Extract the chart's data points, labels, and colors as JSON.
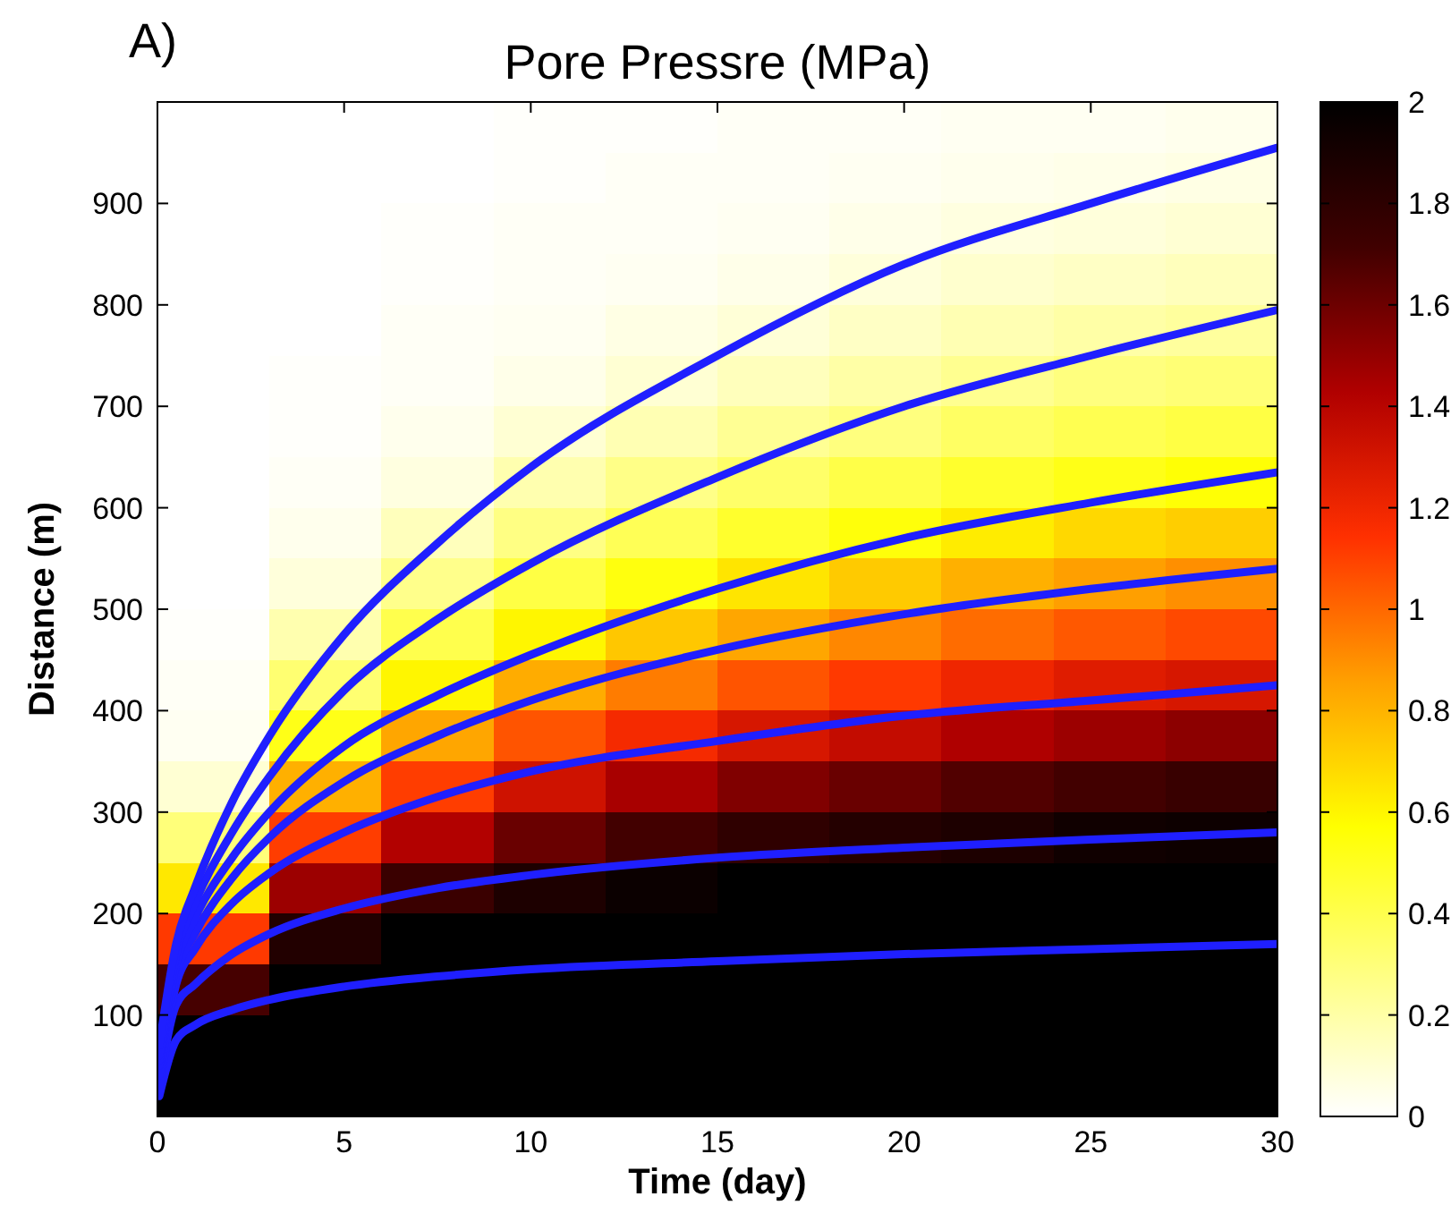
{
  "chart_data": {
    "type": "heatmap",
    "title": "Pore Pressre (MPa)",
    "xlabel": "Time (day)",
    "ylabel": "Distance  (m)",
    "annotations": [
      "A)"
    ],
    "x": [
      1.5,
      4.5,
      7.5,
      10.5,
      13.5,
      16.5,
      19.5,
      22.5,
      25.5,
      28.5
    ],
    "y": [
      975,
      925,
      875,
      825,
      775,
      725,
      675,
      625,
      575,
      525,
      475,
      425,
      375,
      325,
      275,
      225,
      175,
      125,
      75,
      25
    ],
    "xlim": [
      0,
      30
    ],
    "xticks": [
      0,
      5,
      10,
      15,
      20,
      25,
      30
    ],
    "ylim": [
      0,
      1000
    ],
    "yticks": [
      100,
      200,
      300,
      400,
      500,
      600,
      700,
      800,
      900
    ],
    "clim": [
      0,
      2
    ],
    "cticks": [
      0,
      0.2,
      0.4,
      0.6,
      0.8,
      1,
      1.2,
      1.4,
      1.6,
      1.8,
      2
    ],
    "cells": [
      [
        0,
        0,
        0,
        0.01,
        0.01,
        0.02,
        0.02,
        0.03,
        0.03,
        0.04
      ],
      [
        0,
        0,
        0,
        0.01,
        0.02,
        0.02,
        0.03,
        0.04,
        0.05,
        0.06
      ],
      [
        0,
        0,
        0.01,
        0.02,
        0.02,
        0.03,
        0.05,
        0.07,
        0.08,
        0.1
      ],
      [
        0,
        0,
        0.01,
        0.02,
        0.03,
        0.05,
        0.08,
        0.11,
        0.13,
        0.15
      ],
      [
        0,
        0,
        0.02,
        0.03,
        0.06,
        0.09,
        0.13,
        0.17,
        0.2,
        0.22
      ],
      [
        0,
        0.01,
        0.02,
        0.05,
        0.1,
        0.15,
        0.2,
        0.25,
        0.29,
        0.31
      ],
      [
        0,
        0.01,
        0.04,
        0.1,
        0.17,
        0.24,
        0.29,
        0.35,
        0.39,
        0.42
      ],
      [
        0,
        0.02,
        0.07,
        0.18,
        0.27,
        0.34,
        0.41,
        0.47,
        0.52,
        0.56
      ],
      [
        0,
        0.04,
        0.15,
        0.28,
        0.38,
        0.47,
        0.55,
        0.63,
        0.69,
        0.72
      ],
      [
        0,
        0.08,
        0.26,
        0.42,
        0.54,
        0.65,
        0.73,
        0.81,
        0.86,
        0.9
      ],
      [
        0.01,
        0.18,
        0.4,
        0.6,
        0.74,
        0.84,
        0.92,
        0.99,
        1.04,
        1.08
      ],
      [
        0.02,
        0.32,
        0.6,
        0.82,
        0.95,
        1.05,
        1.12,
        1.2,
        1.26,
        1.29
      ],
      [
        0.03,
        0.52,
        0.84,
        1.05,
        1.18,
        1.29,
        1.36,
        1.43,
        1.48,
        1.52
      ],
      [
        0.1,
        0.81,
        1.11,
        1.32,
        1.45,
        1.55,
        1.61,
        1.67,
        1.71,
        1.75
      ],
      [
        0.3,
        1.11,
        1.42,
        1.61,
        1.71,
        1.79,
        1.84,
        1.87,
        1.93,
        1.94
      ],
      [
        0.64,
        1.48,
        1.74,
        1.87,
        1.95,
        2,
        2,
        2,
        2,
        2
      ],
      [
        1.12,
        1.85,
        2,
        2,
        2,
        2,
        2,
        2,
        2,
        2
      ],
      [
        1.7,
        2,
        2,
        2,
        2,
        2,
        2,
        2,
        2,
        2
      ],
      [
        2,
        2,
        2,
        2,
        2,
        2,
        2,
        2,
        2,
        2
      ],
      [
        2,
        2,
        2,
        2,
        2,
        2,
        2,
        2,
        2,
        2
      ]
    ],
    "series": [
      {
        "type": "line",
        "color": "#1f1fff",
        "x": [
          0.05,
          0.5,
          1,
          2,
          3,
          5,
          7.5,
          10,
          15,
          20,
          25,
          30
        ],
        "values": [
          20,
          75,
          90,
          105,
          115,
          128,
          138,
          145,
          153,
          160,
          165,
          170
        ]
      },
      {
        "type": "line",
        "color": "#1f1fff",
        "x": [
          0.05,
          0.5,
          1,
          2,
          3,
          5,
          7.5,
          10,
          15,
          20,
          25,
          30
        ],
        "values": [
          30,
          110,
          130,
          160,
          180,
          205,
          225,
          238,
          255,
          265,
          273,
          280
        ]
      },
      {
        "type": "line",
        "color": "#1f1fff",
        "x": [
          0.05,
          0.5,
          1,
          2,
          3,
          5,
          7.5,
          10,
          15,
          20,
          25,
          30
        ],
        "values": [
          40,
          130,
          165,
          210,
          240,
          280,
          315,
          340,
          370,
          395,
          410,
          425
        ]
      },
      {
        "type": "line",
        "color": "#1f1fff",
        "x": [
          0.05,
          0.5,
          1,
          2,
          3,
          5,
          7.5,
          10,
          15,
          20,
          25,
          30
        ],
        "values": [
          50,
          140,
          180,
          235,
          275,
          330,
          375,
          410,
          460,
          495,
          520,
          540
        ]
      },
      {
        "type": "line",
        "color": "#1f1fff",
        "x": [
          0.05,
          0.5,
          1,
          2,
          3,
          5,
          7.5,
          10,
          15,
          20,
          25,
          30
        ],
        "values": [
          55,
          150,
          195,
          255,
          300,
          365,
          415,
          455,
          520,
          570,
          605,
          635
        ]
      },
      {
        "type": "line",
        "color": "#1f1fff",
        "x": [
          0.05,
          0.5,
          1,
          2,
          3,
          5,
          7.5,
          10,
          15,
          20,
          25,
          30
        ],
        "values": [
          60,
          160,
          210,
          280,
          335,
          420,
          490,
          545,
          630,
          700,
          750,
          795
        ]
      },
      {
        "type": "line",
        "color": "#1f1fff",
        "x": [
          0.05,
          0.5,
          1,
          2,
          3,
          5,
          7.5,
          10,
          15,
          20,
          25,
          30
        ],
        "values": [
          70,
          170,
          225,
          310,
          375,
          475,
          565,
          640,
          750,
          840,
          900,
          955
        ]
      }
    ]
  }
}
